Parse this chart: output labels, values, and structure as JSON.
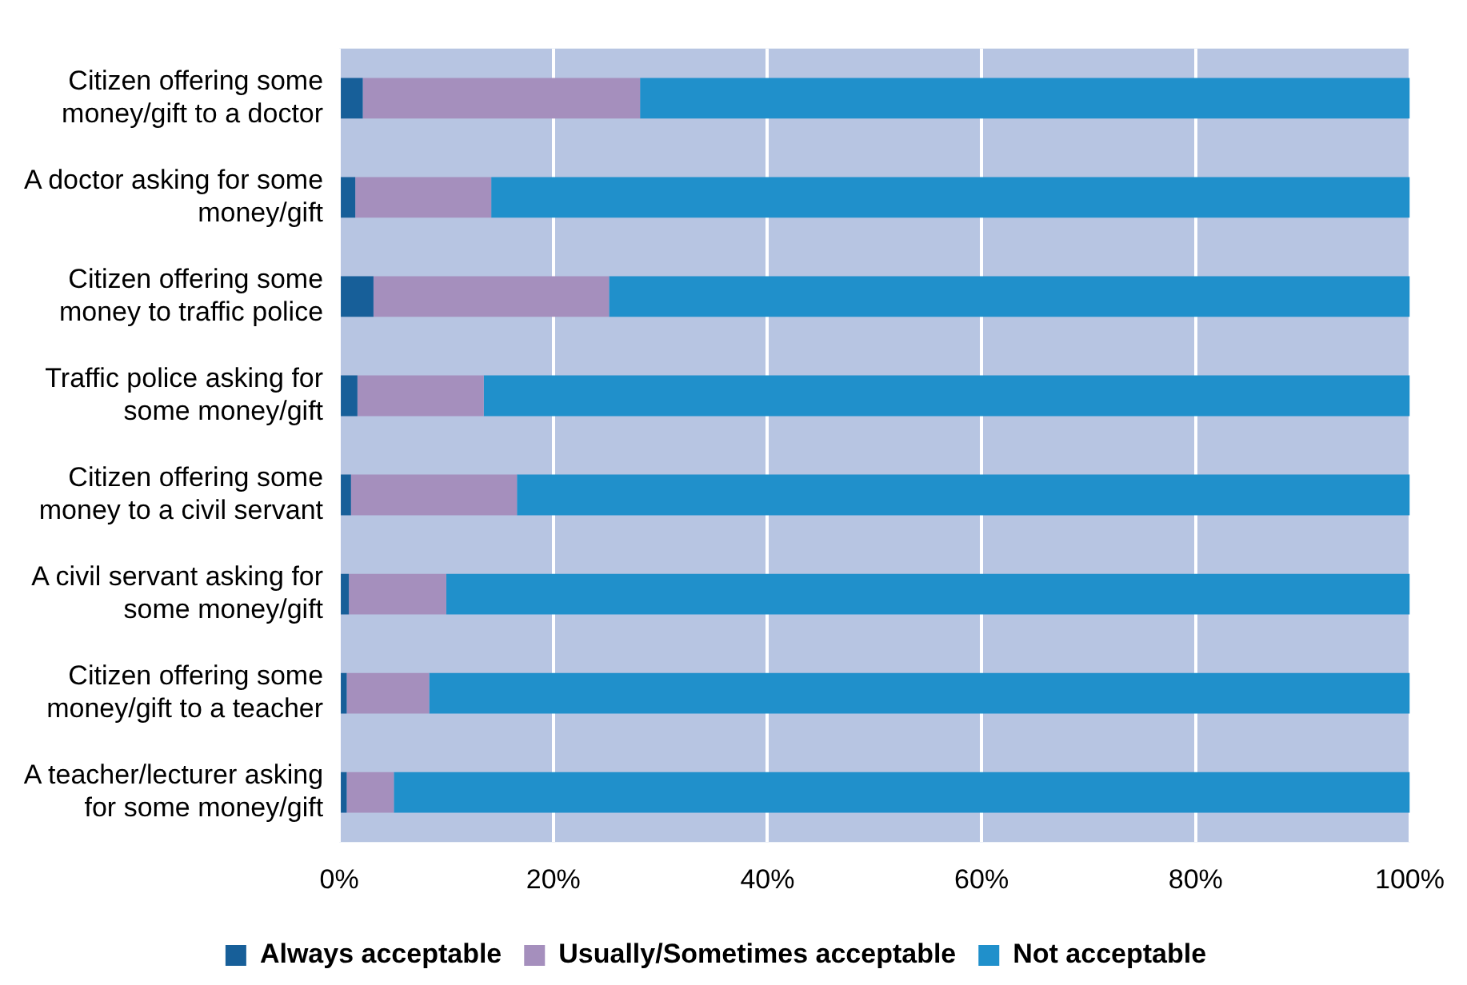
{
  "chart_data": {
    "type": "bar",
    "orientation": "horizontal",
    "stacked": true,
    "categories": [
      "Citizen offering some money/gift to a doctor",
      "A doctor asking for some money/gift",
      "Citizen offering some money to traffic police",
      "Traffic police asking for some money/gift",
      "Citizen offering some money to a civil servant",
      "A civil servant asking for some money/gift",
      "Citizen offering some money/gift to a teacher",
      "A teacher/lecturer asking for some money/gift"
    ],
    "series": [
      {
        "name": "Always acceptable",
        "color": "#175f99",
        "values": [
          2.2,
          1.5,
          3.2,
          1.7,
          1.1,
          0.9,
          0.7,
          0.7
        ]
      },
      {
        "name": "Usually/Sometimes acceptable",
        "color": "#a58fbd",
        "values": [
          25.9,
          12.7,
          22.0,
          11.8,
          15.5,
          9.1,
          7.7,
          4.4
        ]
      },
      {
        "name": "Not acceptable",
        "color": "#2090cb",
        "values": [
          71.9,
          85.8,
          74.8,
          86.5,
          83.4,
          90.0,
          91.6,
          94.9
        ]
      }
    ],
    "xlim": [
      0,
      100
    ],
    "xticks": [
      {
        "value": 0,
        "label": "0%"
      },
      {
        "value": 20,
        "label": "20%"
      },
      {
        "value": 40,
        "label": "40%"
      },
      {
        "value": 60,
        "label": "60%"
      },
      {
        "value": 80,
        "label": "80%"
      },
      {
        "value": 100,
        "label": "100%"
      }
    ],
    "grid": "x",
    "legend": "bottom"
  }
}
